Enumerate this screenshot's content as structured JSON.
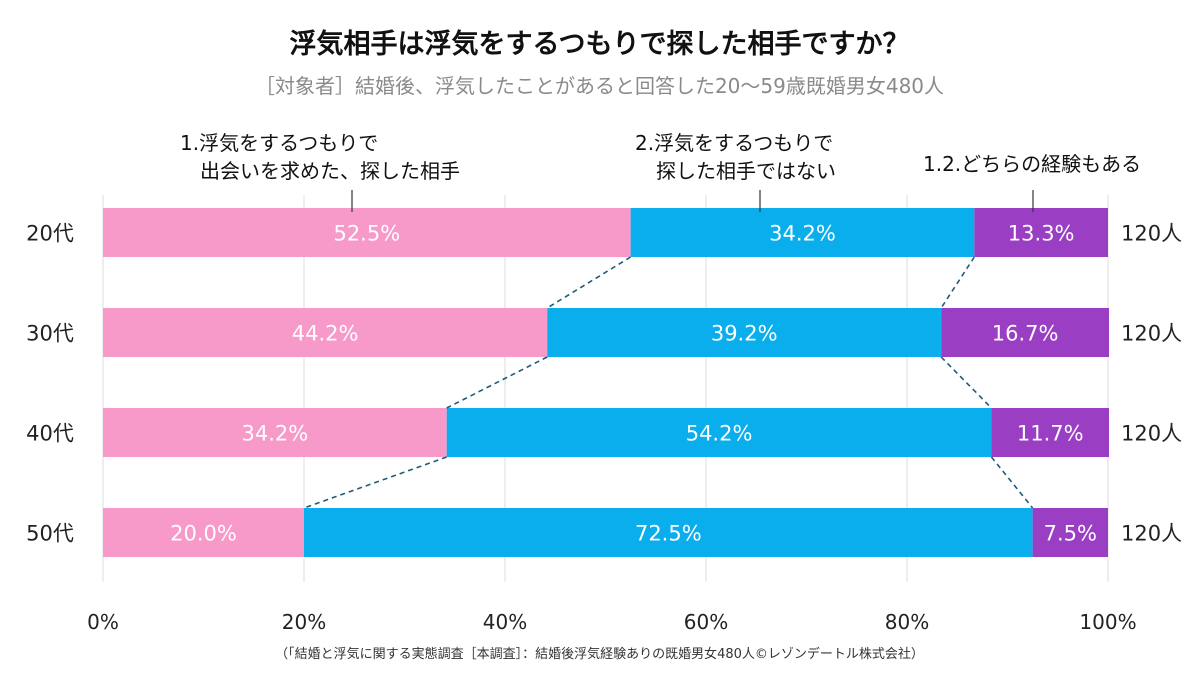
{
  "chart_data": {
    "type": "bar",
    "orientation": "horizontal",
    "stacked": true,
    "percent": true,
    "title": "浮気相手は浮気をするつもりで探した相手ですか？",
    "subtitle": "［対象者］結婚後、浮気したことがあると回答した20～59歳既婚男女480人",
    "categories": [
      "20代",
      "30代",
      "40代",
      "50代"
    ],
    "series": [
      {
        "name": "1.浮気をするつもりで出会いを求めた、探した相手",
        "name_lines": [
          "1.浮気をするつもりで",
          "出会いを求めた、探した相手"
        ],
        "color": "#f79ac9",
        "values": [
          52.5,
          44.2,
          34.2,
          20.0
        ],
        "labels": [
          "52.5%",
          "44.2%",
          "34.2%",
          "20.0%"
        ]
      },
      {
        "name": "2.浮気をするつもりで探した相手ではない",
        "name_lines": [
          "2.浮気をするつもりで",
          "探した相手ではない"
        ],
        "color": "#0aaeec",
        "values": [
          34.2,
          39.2,
          54.2,
          72.5
        ],
        "labels": [
          "34.2%",
          "39.2%",
          "54.2%",
          "72.5%"
        ]
      },
      {
        "name": "1.2.どちらの経験もある",
        "name_lines": [
          "1.2.どちらの経験もある"
        ],
        "color": "#9a3ec4",
        "values": [
          13.3,
          16.7,
          11.7,
          7.5
        ],
        "labels": [
          "13.3%",
          "16.7%",
          "11.7%",
          "7.5%"
        ]
      }
    ],
    "totals": [
      "120人",
      "120人",
      "120人",
      "120人"
    ],
    "xlim": [
      0,
      100
    ],
    "xticks": [
      0,
      20,
      40,
      60,
      80,
      100
    ],
    "xtick_labels": [
      "0%",
      "20%",
      "40%",
      "60%",
      "80%",
      "100%"
    ],
    "grid": true,
    "legend": "above bars, callout labels",
    "connector_lines": "dashed"
  },
  "source": "（「結婚と浮気に関する実態調査［本調査］：結婚後浮気経験ありの既婚男女480人©レゾンデートル株式会社）"
}
